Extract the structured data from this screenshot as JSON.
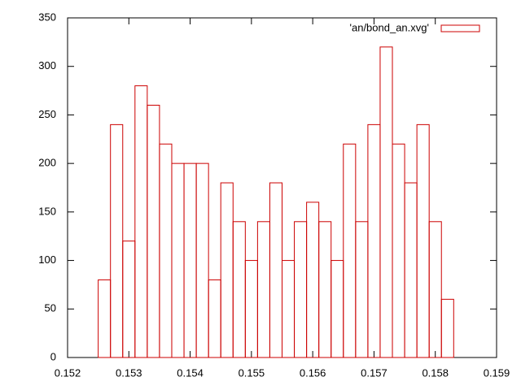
{
  "chart_data": {
    "type": "histogram",
    "bins": [
      0.1525,
      0.1527,
      0.1529,
      0.1531,
      0.1533,
      0.1535,
      0.1537,
      0.1539,
      0.1541,
      0.1543,
      0.1545,
      0.1547,
      0.1549,
      0.1551,
      0.1553,
      0.1555,
      0.1557,
      0.1559,
      0.1561,
      0.1563,
      0.1565,
      0.1567,
      0.1569,
      0.1571,
      0.1573,
      0.1575,
      0.1577,
      0.1579,
      0.1581,
      0.1583
    ],
    "series": [
      {
        "name": "'an/bond_an.xvg'",
        "color": "#cc0000",
        "values": [
          80,
          240,
          120,
          280,
          260,
          220,
          200,
          200,
          200,
          80,
          180,
          140,
          100,
          140,
          180,
          100,
          140,
          160,
          140,
          100,
          220,
          140,
          240,
          320,
          220,
          180,
          240,
          140,
          60
        ]
      }
    ],
    "xlim": [
      0.152,
      0.159
    ],
    "xticks": [
      0.152,
      0.153,
      0.154,
      0.155,
      0.156,
      0.157,
      0.158,
      0.159
    ],
    "ylim": [
      0,
      350
    ],
    "yticks": [
      0,
      50,
      100,
      150,
      200,
      250,
      300,
      350
    ],
    "legend": "top-right",
    "grid": false
  }
}
